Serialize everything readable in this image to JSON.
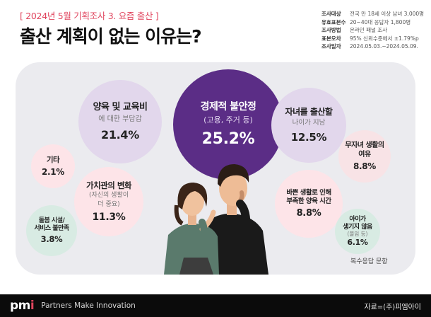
{
  "header": {
    "subtitle": "[ 2024년 5월 기획조사 3. 요즘 출산 ]",
    "title": "출산 계획이 없는 이유는?"
  },
  "meta": [
    {
      "label": "조사대상",
      "value": "전국 만 18세 이상 남녀 3,000명"
    },
    {
      "label": "유효표본수",
      "value": "20~40대 응답자 1,800명"
    },
    {
      "label": "조사방법",
      "value": "온라인 패널 조사"
    },
    {
      "label": "표본오차",
      "value": "95% 신뢰수준에서 ±1.79%p"
    },
    {
      "label": "조사일자",
      "value": "2024.05.03.~2024.05.09."
    }
  ],
  "chart_data": {
    "type": "bubble",
    "categories": [
      "경제적 불안정",
      "양육 및 교육비",
      "자녀를 출산할 나이가 지남",
      "무자녀 생활의 여유",
      "바쁜 생활로 인해 부족한 양육 시간",
      "가치관의 변화",
      "아이가 생기지 않음",
      "돌봄 시설/서비스 불만족",
      "기타"
    ],
    "values": [
      25.2,
      21.4,
      12.5,
      8.8,
      8.8,
      11.3,
      6.1,
      3.8,
      2.1
    ],
    "unit": "%"
  },
  "bubbles": {
    "main": {
      "title": "경제적 불안정",
      "sub": "(고용, 주거 등)",
      "pct": "25.2%",
      "color": "#5b2d86"
    },
    "childcare": {
      "title": "양육 및 교육비",
      "sub": "에 대한 부담감",
      "pct": "21.4%"
    },
    "age": {
      "title": "자녀를 출산할",
      "sub": "나이가 지남",
      "pct": "12.5%"
    },
    "childfree": {
      "title1": "무자녀 생활의",
      "title2": "여유",
      "pct": "8.8%"
    },
    "etc": {
      "title": "기타",
      "pct": "2.1%"
    },
    "values": {
      "title": "가치관의 변화",
      "sub1": "(자신의 생활이",
      "sub2": "더 중요)",
      "pct": "11.3%"
    },
    "time": {
      "title1": "바쁜 생활로 인해",
      "title2": "부족한 양육 시간",
      "pct": "8.8%"
    },
    "care": {
      "title1": "돌봄 시설/",
      "title2": "서비스 불만족",
      "pct": "3.8%"
    },
    "cannot": {
      "title1": "아이가",
      "title2": "생기지 않음",
      "sub": "(불임 등)",
      "pct": "6.1%"
    }
  },
  "note": "복수응답 문항",
  "footer": {
    "logo": "pm",
    "logo_i": "i",
    "tagline": "Partners Make Innovation",
    "source": "자료=(주)피엠아이"
  },
  "colors": {
    "accent": "#e0455e",
    "main_bubble": "#5b2d86",
    "lavender": "#e2d7ec",
    "pink": "#fde4e8",
    "mint": "#d8ebe3",
    "panel": "#ebebef"
  }
}
